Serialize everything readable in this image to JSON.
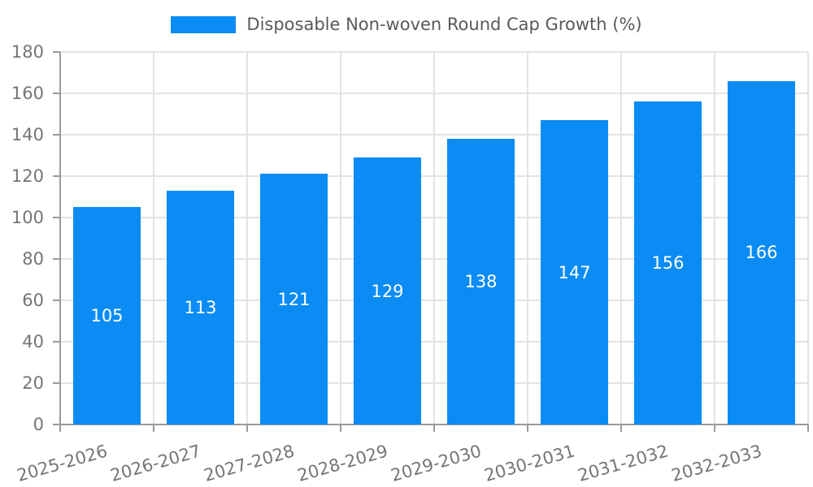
{
  "legend": {
    "label": "Disposable Non-woven Round Cap Growth (%)"
  },
  "chart_data": {
    "type": "bar",
    "title": "",
    "xlabel": "",
    "ylabel": "",
    "categories": [
      "2025-2026",
      "2026-2027",
      "2027-2028",
      "2028-2029",
      "2029-2030",
      "2030-2031",
      "2031-2032",
      "2032-2033"
    ],
    "series": [
      {
        "name": "Disposable Non-woven Round Cap Growth (%)",
        "values": [
          105,
          113,
          121,
          129,
          138,
          147,
          156,
          166
        ]
      }
    ],
    "ylim": [
      0,
      180
    ],
    "yticks": [
      0,
      20,
      40,
      60,
      80,
      100,
      120,
      140,
      160,
      180
    ],
    "grid": true,
    "legend_position": "top-center",
    "value_labels": "inside-center",
    "colors": {
      "bar": "#0b8cf4",
      "value_label": "#ffffff",
      "grid": "#e3e3e3",
      "axis": "#9a9a9a",
      "tick_label": "#757575",
      "legend_text": "#595959"
    }
  }
}
